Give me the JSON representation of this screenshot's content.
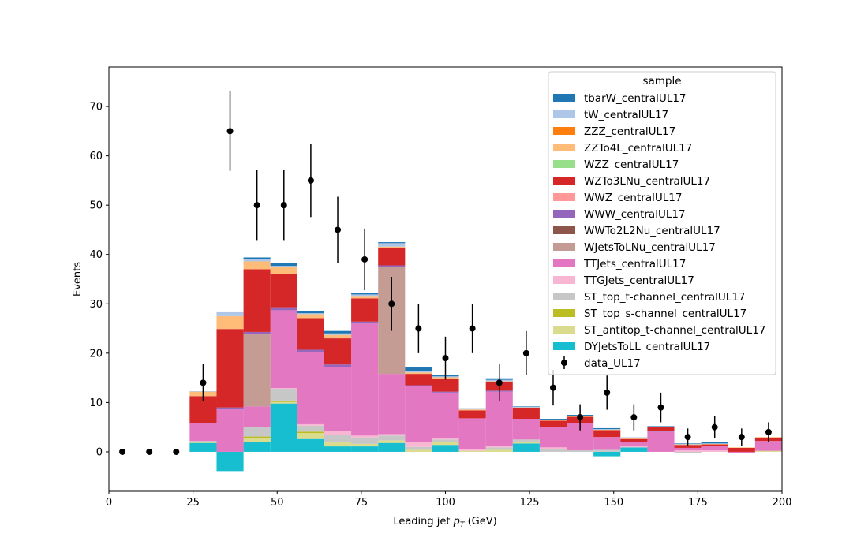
{
  "chart_data": {
    "type": "bar",
    "stacked": true,
    "xlabel": "Leading jet",
    "xlabel_unit": "(GeV)",
    "ylabel": "Events",
    "xlim": [
      0,
      200
    ],
    "ylim": [
      -8,
      78
    ],
    "x_ticks": [
      0,
      25,
      50,
      75,
      100,
      125,
      150,
      175,
      200
    ],
    "y_ticks": [
      0,
      10,
      20,
      30,
      40,
      50,
      60,
      70
    ],
    "legend_title": "sample",
    "legend_position": "top-right",
    "bin_edges": [
      0,
      8,
      16,
      24,
      32,
      40,
      48,
      56,
      64,
      72,
      80,
      88,
      96,
      104,
      112,
      120,
      128,
      136,
      144,
      152,
      160,
      168,
      176,
      184,
      192,
      200
    ],
    "series": [
      {
        "name": "DYJetsToLL_centralUL17",
        "color": "#17becf",
        "values": [
          0,
          0,
          0,
          1.8,
          -3.9,
          2.0,
          9.8,
          2.6,
          1.1,
          1.1,
          1.8,
          0,
          1.4,
          0,
          0,
          1.7,
          0,
          0,
          -0.9,
          0.9,
          0,
          0,
          0,
          0,
          0
        ]
      },
      {
        "name": "ST_antitop_t-channel_centralUL17",
        "color": "#dbdb8d",
        "values": [
          0,
          0,
          0,
          0.2,
          0,
          0.8,
          0.3,
          1.2,
          0.8,
          0.5,
          0.5,
          0.4,
          0.6,
          0.2,
          0.4,
          0.3,
          0,
          0,
          0,
          0,
          0,
          0,
          0,
          0,
          0.2
        ]
      },
      {
        "name": "ST_top_s-channel_centralUL17",
        "color": "#bcbd22",
        "values": [
          0,
          0,
          0,
          0,
          0,
          0.3,
          0.3,
          0.3,
          0,
          0,
          0,
          0,
          0,
          0,
          0,
          0,
          0,
          0,
          0,
          0,
          0,
          0,
          0,
          0,
          0
        ]
      },
      {
        "name": "ST_top_t-channel_centralUL17",
        "color": "#c7c7c7",
        "values": [
          0,
          0,
          0,
          0.2,
          0,
          1.9,
          2.4,
          1.2,
          1.5,
          1.3,
          1.0,
          0.6,
          0.5,
          0,
          0.5,
          0.5,
          0.6,
          0.3,
          0.4,
          0,
          0,
          -0.3,
          0,
          0,
          0
        ]
      },
      {
        "name": "TTGJets_centralUL17",
        "color": "#f7b6d2",
        "values": [
          0,
          0,
          0,
          0,
          0,
          0,
          0.1,
          0.3,
          0.9,
          0.4,
          0.3,
          1.0,
          0.2,
          0.4,
          0.3,
          0,
          0.3,
          0,
          0,
          0.3,
          0,
          0.3,
          0.3,
          0,
          0
        ]
      },
      {
        "name": "TTJets_centralUL17",
        "color": "#e377c2",
        "values": [
          0,
          0,
          0,
          3.6,
          8.6,
          4.2,
          15.8,
          14.6,
          12.9,
          22.7,
          12.2,
          11.3,
          9.3,
          6.2,
          11.0,
          4.2,
          4.2,
          5.6,
          2.6,
          0.8,
          4.1,
          0.5,
          0.8,
          -0.3,
          2.0
        ]
      },
      {
        "name": "WJetsToLNu_centralUL17",
        "color": "#c49c94",
        "values": [
          0,
          0,
          0,
          0,
          0,
          14.6,
          0,
          0,
          0,
          0,
          21.7,
          0,
          0,
          0,
          0,
          0,
          0,
          0,
          0,
          0,
          0,
          0,
          0,
          0,
          0
        ]
      },
      {
        "name": "WWTo2L2Nu_centralUL17",
        "color": "#8c564b",
        "values": [
          0,
          0,
          0,
          0,
          0,
          0,
          0,
          0,
          0,
          0,
          0,
          0,
          0,
          0,
          0,
          0,
          0,
          0,
          0,
          0,
          0,
          0,
          0,
          0,
          0
        ]
      },
      {
        "name": "WWW_centralUL17",
        "color": "#9467bd",
        "values": [
          0,
          0,
          0,
          0.1,
          0.4,
          0.5,
          0.6,
          0.5,
          0.5,
          0.4,
          0.3,
          0.2,
          0.2,
          0,
          0.2,
          0,
          0,
          0,
          0,
          0,
          0.2,
          0,
          0,
          0,
          0
        ]
      },
      {
        "name": "WWZ_centralUL17",
        "color": "#ff9896",
        "values": [
          0,
          0,
          0,
          0,
          0,
          0,
          0,
          0,
          0,
          0,
          0,
          0,
          0,
          0,
          0,
          0,
          0,
          0,
          0,
          0,
          0,
          0,
          0,
          0,
          0
        ]
      },
      {
        "name": "WZTo3LNu_centralUL17",
        "color": "#d62728",
        "values": [
          0,
          0,
          0,
          5.4,
          15.9,
          12.7,
          6.8,
          6.4,
          5.3,
          4.7,
          3.5,
          2.3,
          2.6,
          1.6,
          1.7,
          2.2,
          1.2,
          1.2,
          1.4,
          0.6,
          0.7,
          0.6,
          0.4,
          0.8,
          0.7
        ]
      },
      {
        "name": "WZZ_centralUL17",
        "color": "#98df8a",
        "values": [
          0,
          0,
          0,
          0,
          0,
          0,
          0,
          0,
          0,
          0,
          0,
          0,
          0,
          0,
          0,
          0,
          0,
          0,
          0,
          0,
          0,
          0,
          0,
          0,
          0
        ]
      },
      {
        "name": "ZZTo4L_centralUL17",
        "color": "#ffbb78",
        "values": [
          0,
          0,
          0,
          0.9,
          2.6,
          1.6,
          1.3,
          0.8,
          0.7,
          0.5,
          0.3,
          0.3,
          0.3,
          0.2,
          0.2,
          0.1,
          0.1,
          0.1,
          0.1,
          0.1,
          0.1,
          0.1,
          0.1,
          0.1,
          0.1
        ]
      },
      {
        "name": "ZZZ_centralUL17",
        "color": "#ff7f0e",
        "values": [
          0,
          0,
          0,
          0,
          0,
          0,
          0,
          0,
          0,
          0,
          0,
          0,
          0,
          0,
          0,
          0,
          0,
          0,
          0,
          0,
          0,
          0,
          0,
          0,
          0
        ]
      },
      {
        "name": "tW_centralUL17",
        "color": "#aec7e8",
        "values": [
          0,
          0,
          0,
          0.1,
          0.8,
          0.5,
          0.3,
          0.2,
          0.3,
          0.3,
          0.7,
          0.3,
          0.2,
          0.1,
          0.3,
          0.1,
          0.1,
          0.1,
          0.1,
          0.1,
          0,
          0.1,
          0.1,
          0,
          0
        ]
      },
      {
        "name": "tbarW_centralUL17",
        "color": "#1f77b4",
        "values": [
          0,
          0,
          0,
          0,
          0,
          0.3,
          0.5,
          0.4,
          0.5,
          0.3,
          0.2,
          0.8,
          0.3,
          0,
          0.3,
          0.1,
          0.2,
          0.2,
          0.2,
          0.1,
          0.1,
          0.1,
          0.3,
          0,
          0
        ]
      }
    ],
    "data": {
      "name": "data_UL17",
      "color": "#000000",
      "x": [
        4,
        12,
        20,
        28,
        36,
        44,
        52,
        60,
        68,
        76,
        84,
        92,
        100,
        108,
        116,
        124,
        132,
        140,
        148,
        156,
        164,
        172,
        180,
        188,
        196
      ],
      "y": [
        0,
        0,
        0,
        14,
        65,
        50,
        50,
        55,
        45,
        39,
        30,
        25,
        19,
        25,
        14,
        20,
        13,
        7,
        12,
        7,
        9,
        3,
        5,
        3,
        4
      ]
    }
  }
}
